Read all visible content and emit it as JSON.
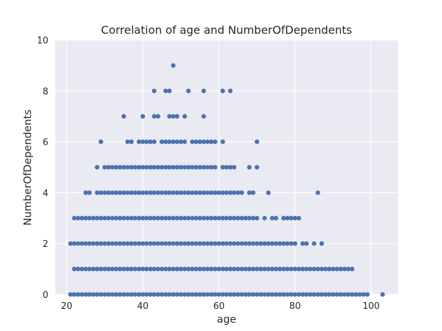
{
  "chart_data": {
    "type": "scatter",
    "title": "Correlation of age and NumberOfDependents",
    "xlabel": "age",
    "ylabel": "NumberOfDependents",
    "xlim": [
      17,
      107
    ],
    "ylim": [
      0,
      10
    ],
    "xticks": [
      "20",
      "40",
      "60",
      "80",
      "100"
    ],
    "yticks": [
      "0",
      "2",
      "4",
      "6",
      "8",
      "10"
    ],
    "grid": true,
    "background": "#EAEAF2",
    "point_color": "#4C72B0",
    "points": [
      {
        "y": 0,
        "x": [
          21,
          22,
          23,
          24,
          25,
          26,
          27,
          28,
          29,
          30,
          31,
          32,
          33,
          34,
          35,
          36,
          37,
          38,
          39,
          40,
          41,
          42,
          43,
          44,
          45,
          46,
          47,
          48,
          49,
          50,
          51,
          52,
          53,
          54,
          55,
          56,
          57,
          58,
          59,
          60,
          61,
          62,
          63,
          64,
          65,
          66,
          67,
          68,
          69,
          70,
          71,
          72,
          73,
          74,
          75,
          76,
          77,
          78,
          79,
          80,
          81,
          82,
          83,
          84,
          85,
          86,
          87,
          88,
          89,
          90,
          91,
          92,
          93,
          94,
          95,
          96,
          97,
          98,
          99,
          103
        ]
      },
      {
        "y": 1,
        "x": [
          22,
          23,
          24,
          25,
          26,
          27,
          28,
          29,
          30,
          31,
          32,
          33,
          34,
          35,
          36,
          37,
          38,
          39,
          40,
          41,
          42,
          43,
          44,
          45,
          46,
          47,
          48,
          49,
          50,
          51,
          52,
          53,
          54,
          55,
          56,
          57,
          58,
          59,
          60,
          61,
          62,
          63,
          64,
          65,
          66,
          67,
          68,
          69,
          70,
          71,
          72,
          73,
          74,
          75,
          76,
          77,
          78,
          79,
          80,
          81,
          82,
          83,
          84,
          85,
          86,
          87,
          88,
          89,
          90,
          91,
          92,
          93,
          94,
          95
        ]
      },
      {
        "y": 2,
        "x": [
          21,
          22,
          23,
          24,
          25,
          26,
          27,
          28,
          29,
          30,
          31,
          32,
          33,
          34,
          35,
          36,
          37,
          38,
          39,
          40,
          41,
          42,
          43,
          44,
          45,
          46,
          47,
          48,
          49,
          50,
          51,
          52,
          53,
          54,
          55,
          56,
          57,
          58,
          59,
          60,
          61,
          62,
          63,
          64,
          65,
          66,
          67,
          68,
          69,
          70,
          71,
          72,
          73,
          74,
          75,
          76,
          77,
          78,
          79,
          80,
          82,
          83,
          85,
          87
        ]
      },
      {
        "y": 3,
        "x": [
          22,
          23,
          24,
          25,
          26,
          27,
          28,
          29,
          30,
          31,
          32,
          33,
          34,
          35,
          36,
          37,
          38,
          39,
          40,
          41,
          42,
          43,
          44,
          45,
          46,
          47,
          48,
          49,
          50,
          51,
          52,
          53,
          54,
          55,
          56,
          57,
          58,
          59,
          60,
          61,
          62,
          63,
          64,
          65,
          66,
          67,
          68,
          69,
          70,
          72,
          74,
          75,
          77,
          78,
          79,
          80,
          81
        ]
      },
      {
        "y": 4,
        "x": [
          25,
          26,
          28,
          29,
          30,
          31,
          32,
          33,
          34,
          35,
          36,
          37,
          38,
          39,
          40,
          41,
          42,
          43,
          44,
          45,
          46,
          47,
          48,
          49,
          50,
          51,
          52,
          53,
          54,
          55,
          56,
          57,
          58,
          59,
          60,
          61,
          62,
          63,
          64,
          65,
          66,
          68,
          69,
          73,
          86
        ]
      },
      {
        "y": 5,
        "x": [
          28,
          30,
          31,
          32,
          33,
          34,
          35,
          36,
          37,
          38,
          39,
          40,
          41,
          42,
          43,
          44,
          45,
          46,
          47,
          48,
          49,
          50,
          51,
          52,
          53,
          54,
          55,
          56,
          57,
          58,
          59,
          61,
          62,
          63,
          64,
          68,
          70
        ]
      },
      {
        "y": 6,
        "x": [
          29,
          36,
          37,
          39,
          40,
          41,
          42,
          43,
          45,
          46,
          47,
          48,
          49,
          50,
          51,
          53,
          54,
          55,
          56,
          57,
          58,
          59,
          61,
          70
        ]
      },
      {
        "y": 7,
        "x": [
          35,
          40,
          43,
          44,
          47,
          48,
          49,
          51,
          56
        ]
      },
      {
        "y": 8,
        "x": [
          43,
          46,
          47,
          52,
          56,
          61,
          63
        ]
      },
      {
        "y": 9,
        "x": [
          48
        ]
      }
    ]
  }
}
